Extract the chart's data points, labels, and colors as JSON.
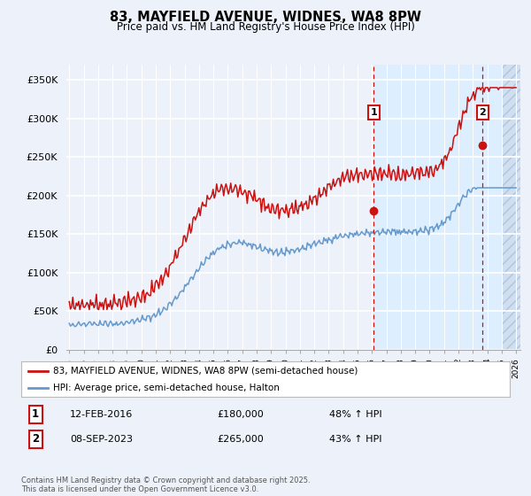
{
  "title": "83, MAYFIELD AVENUE, WIDNES, WA8 8PW",
  "subtitle": "Price paid vs. HM Land Registry's House Price Index (HPI)",
  "ylabel_ticks": [
    "£0",
    "£50K",
    "£100K",
    "£150K",
    "£200K",
    "£250K",
    "£300K",
    "£350K"
  ],
  "ytick_values": [
    0,
    50000,
    100000,
    150000,
    200000,
    250000,
    300000,
    350000
  ],
  "ylim": [
    0,
    370000
  ],
  "xlim_start": 1994.8,
  "xlim_end": 2026.3,
  "hpi_color": "#6699cc",
  "price_color": "#cc1111",
  "marker1_x": 2016.12,
  "marker1_y": 180000,
  "marker2_x": 2023.69,
  "marker2_y": 265000,
  "shade_start": 2016.12,
  "shade_end": 2025.1,
  "shade_color": "#ddeeff",
  "hatch_start": 2025.1,
  "hatch_color": "#d0dff0",
  "legend_line1": "83, MAYFIELD AVENUE, WIDNES, WA8 8PW (semi-detached house)",
  "legend_line2": "HPI: Average price, semi-detached house, Halton",
  "marker1_date": "12-FEB-2016",
  "marker1_price": "£180,000",
  "marker1_hpi": "48% ↑ HPI",
  "marker2_date": "08-SEP-2023",
  "marker2_price": "£265,000",
  "marker2_hpi": "43% ↑ HPI",
  "footer": "Contains HM Land Registry data © Crown copyright and database right 2025.\nThis data is licensed under the Open Government Licence v3.0.",
  "bg_color": "#edf2fa",
  "plot_bg": "#edf2fa",
  "grid_color": "#ffffff"
}
